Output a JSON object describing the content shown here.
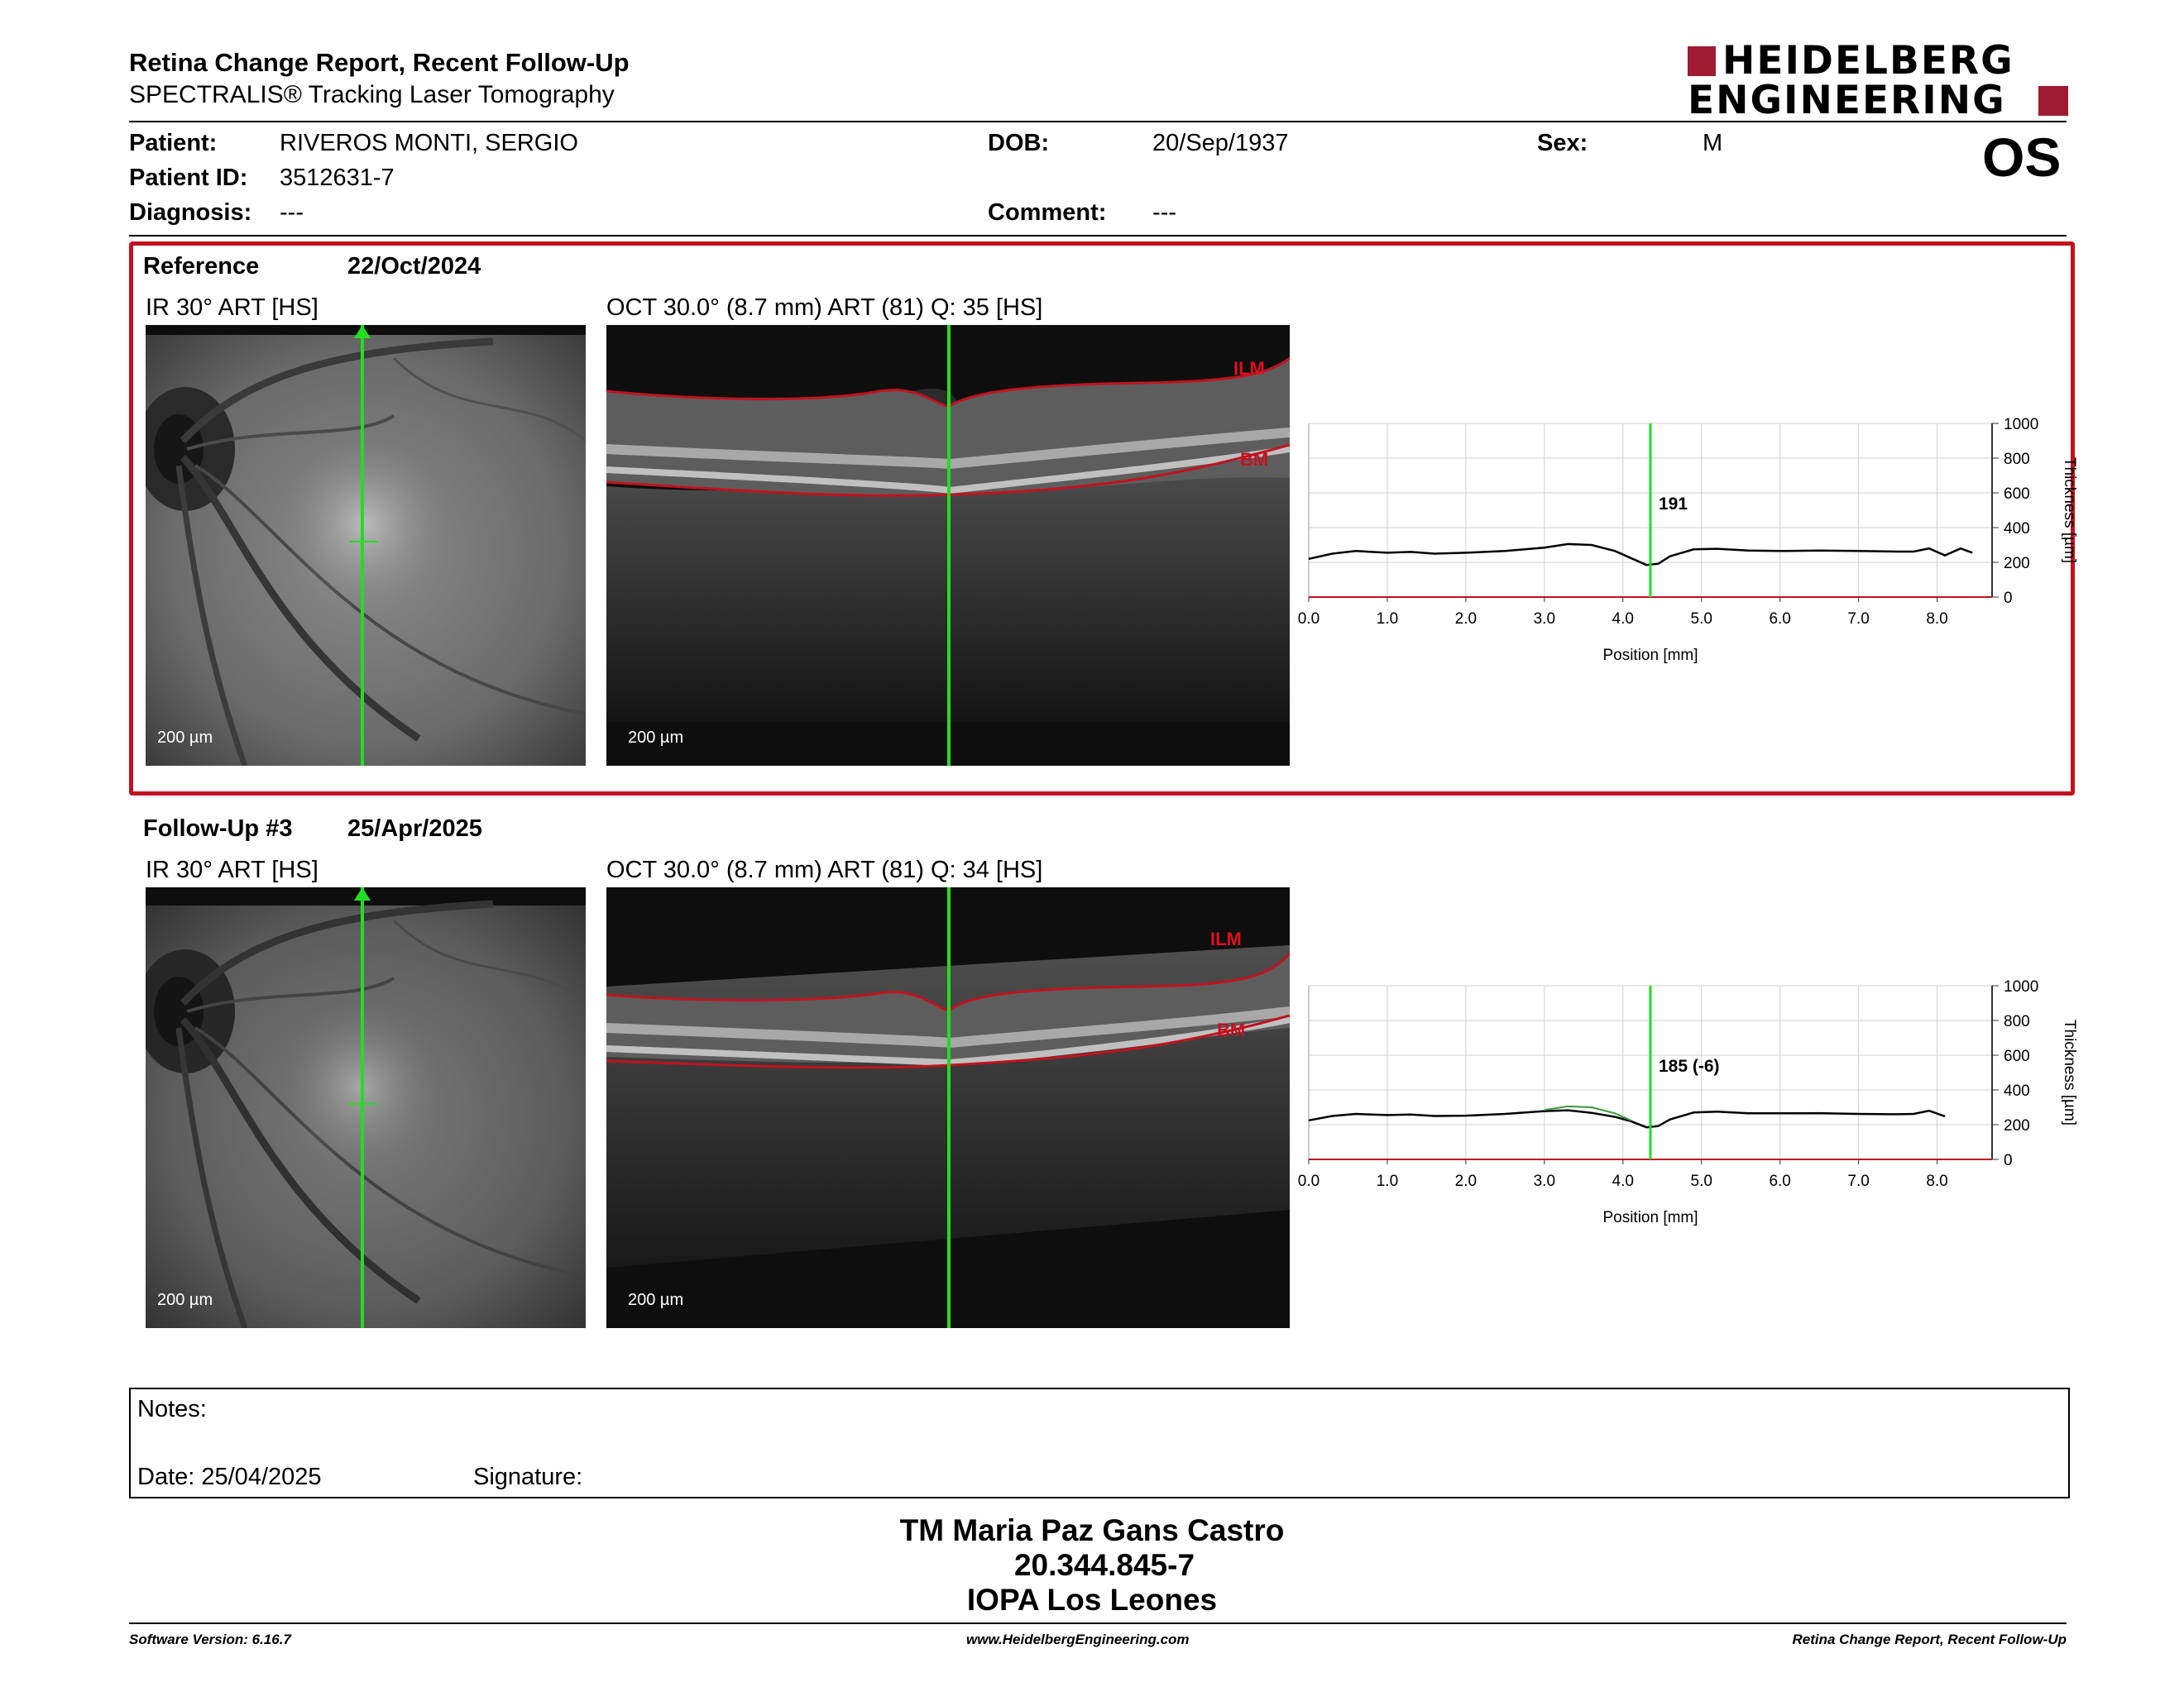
{
  "header": {
    "title": "Retina Change Report, Recent Follow-Up",
    "subtitle": "SPECTRALIS® Tracking Laser Tomography",
    "logo_line1": "HEIDELBERG",
    "logo_line2": "ENGINEERING",
    "brand_color": "#9e1b32"
  },
  "patient": {
    "patient_label": "Patient:",
    "patient_name": "RIVEROS MONTI, SERGIO",
    "id_label": "Patient ID:",
    "id_value": "3512631-7",
    "diagnosis_label": "Diagnosis:",
    "diagnosis_value": "---",
    "dob_label": "DOB:",
    "dob_value": "20/Sep/1937",
    "comment_label": "Comment:",
    "comment_value": "---",
    "sex_label": "Sex:",
    "sex_value": "M",
    "eye": "OS"
  },
  "reference": {
    "label": "Reference",
    "date": "22/Oct/2024",
    "ir_title": "IR 30° ART [HS]",
    "oct_title": "OCT 30.0° (8.7 mm) ART (81) Q: 35 [HS]",
    "scale_label": "200 µm",
    "ilm_label": "ILM",
    "bm_label": "BM",
    "thickness_label": "191"
  },
  "followup": {
    "label": "Follow-Up #3",
    "date": "25/Apr/2025",
    "ir_title": "IR 30° ART [HS]",
    "oct_title": "OCT 30.0° (8.7 mm) ART (81) Q: 34 [HS]",
    "scale_label": "200 µm",
    "ilm_label": "ILM",
    "bm_label": "BM",
    "thickness_label": "185 (-6)"
  },
  "chart_data": [
    {
      "type": "line",
      "xlabel": "Position [mm]",
      "ylabel": "Thickness [µm]",
      "xlim": [
        0,
        8.7
      ],
      "ylim": [
        0,
        1000
      ],
      "x_ticks": [
        "0.0",
        "1.0",
        "2.0",
        "3.0",
        "4.0",
        "5.0",
        "6.0",
        "7.0",
        "8.0"
      ],
      "y_ticks": [
        "0",
        "200",
        "400",
        "600",
        "800",
        "1000"
      ],
      "grid": true,
      "marker_x": 4.35,
      "marker_label": "191",
      "series": [
        {
          "color": "#000000",
          "x": [
            0.0,
            0.3,
            0.6,
            1.0,
            1.3,
            1.6,
            2.0,
            2.5,
            3.0,
            3.3,
            3.6,
            3.9,
            4.1,
            4.3,
            4.45,
            4.6,
            4.9,
            5.2,
            5.6,
            6.0,
            6.5,
            7.0,
            7.5,
            7.7,
            7.9,
            8.1,
            8.3,
            8.45
          ],
          "y": [
            220,
            250,
            265,
            255,
            260,
            250,
            255,
            265,
            285,
            305,
            300,
            265,
            225,
            185,
            192,
            235,
            275,
            278,
            268,
            265,
            268,
            265,
            262,
            262,
            280,
            240,
            280,
            255
          ]
        }
      ]
    },
    {
      "type": "line",
      "xlabel": "Position [mm]",
      "ylabel": "Thickness [µm]",
      "xlim": [
        0,
        8.7
      ],
      "ylim": [
        0,
        1000
      ],
      "x_ticks": [
        "0.0",
        "1.0",
        "2.0",
        "3.0",
        "4.0",
        "5.0",
        "6.0",
        "7.0",
        "8.0"
      ],
      "y_ticks": [
        "0",
        "200",
        "400",
        "600",
        "800",
        "1000"
      ],
      "grid": true,
      "marker_x": 4.35,
      "marker_label": "185 (-6)",
      "series": [
        {
          "color": "#000000",
          "x": [
            0.0,
            0.3,
            0.6,
            1.0,
            1.3,
            1.6,
            2.0,
            2.5,
            3.0,
            3.3,
            3.6,
            3.9,
            4.1,
            4.3,
            4.45,
            4.6,
            4.9,
            5.2,
            5.6,
            6.0,
            6.5,
            7.0,
            7.5,
            7.7,
            7.9,
            8.1
          ],
          "y": [
            225,
            250,
            262,
            255,
            258,
            250,
            252,
            262,
            278,
            283,
            268,
            245,
            220,
            185,
            192,
            230,
            270,
            275,
            265,
            265,
            266,
            262,
            260,
            262,
            280,
            248
          ]
        },
        {
          "color": "#3a9a3a",
          "x": [
            3.0,
            3.3,
            3.6,
            3.9,
            4.1
          ],
          "y": [
            285,
            305,
            300,
            265,
            225
          ]
        }
      ]
    }
  ],
  "notes": {
    "notes_label": "Notes:",
    "date_label": "Date: 25/04/2025",
    "signature_label": "Signature:"
  },
  "signature_block": {
    "name": "TM Maria Paz Gans Castro",
    "rut": "20.344.845-7",
    "institution": "IOPA Los Leones"
  },
  "footer": {
    "version": "Software Version: 6.16.7",
    "website": "www.HeidelbergEngineering.com",
    "report": "Retina Change Report, Recent Follow-Up"
  }
}
